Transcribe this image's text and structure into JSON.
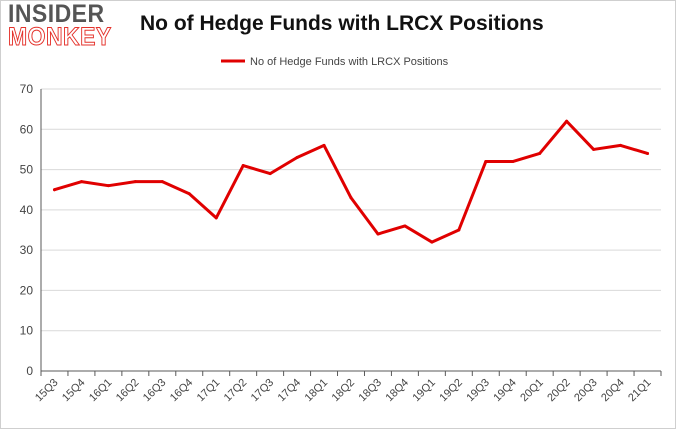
{
  "logo": {
    "line1": "INSIDER",
    "line2": "MONKEY"
  },
  "colors": {
    "series": "#e00000",
    "grid": "#d9d9d9",
    "axis": "#595959",
    "text": "#444444"
  },
  "chart_data": {
    "type": "line",
    "title": "No of Hedge Funds with LRCX Positions",
    "xlabel": "",
    "ylabel": "",
    "legend": "top-center",
    "grid": true,
    "ylim": [
      0,
      70
    ],
    "yticks": [
      0,
      10,
      20,
      30,
      40,
      50,
      60,
      70
    ],
    "categories": [
      "15Q3",
      "15Q4",
      "16Q1",
      "16Q2",
      "16Q3",
      "16Q4",
      "17Q1",
      "17Q2",
      "17Q3",
      "17Q4",
      "18Q1",
      "18Q2",
      "18Q3",
      "18Q4",
      "19Q1",
      "19Q2",
      "19Q3",
      "19Q4",
      "20Q1",
      "20Q2",
      "20Q3",
      "20Q4",
      "21Q1"
    ],
    "series": [
      {
        "name": "No of Hedge Funds with LRCX Positions",
        "values": [
          45,
          47,
          46,
          47,
          47,
          44,
          38,
          51,
          49,
          53,
          56,
          43,
          34,
          36,
          32,
          35,
          52,
          52,
          54,
          62,
          55,
          56,
          54
        ]
      }
    ]
  }
}
